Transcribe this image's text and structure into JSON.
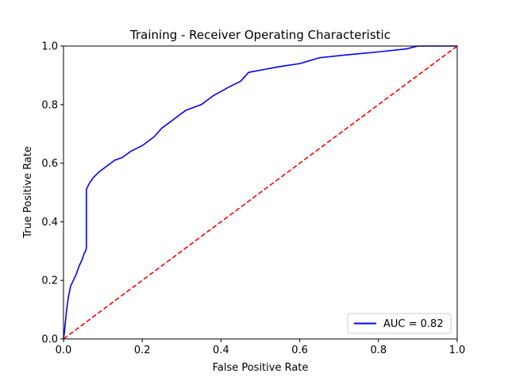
{
  "chart_data": {
    "type": "line",
    "title": "Training - Receiver Operating Characteristic",
    "xlabel": "False Positive Rate",
    "ylabel": "True Positive Rate",
    "xlim": [
      0,
      1
    ],
    "ylim": [
      0,
      1
    ],
    "xticks": [
      "0.0",
      "0.2",
      "0.4",
      "0.6",
      "0.8",
      "1.0"
    ],
    "yticks": [
      "0.0",
      "0.2",
      "0.4",
      "0.6",
      "0.8",
      "1.0"
    ],
    "grid": false,
    "legend_position": "lower-right",
    "series": [
      {
        "name": "AUC = 0.82",
        "color": "#0000ff",
        "style": "solid",
        "points": [
          [
            0.0,
            0.0
          ],
          [
            0.002,
            0.02
          ],
          [
            0.005,
            0.06
          ],
          [
            0.008,
            0.1
          ],
          [
            0.012,
            0.14
          ],
          [
            0.018,
            0.18
          ],
          [
            0.025,
            0.2
          ],
          [
            0.032,
            0.22
          ],
          [
            0.04,
            0.25
          ],
          [
            0.047,
            0.27
          ],
          [
            0.052,
            0.29
          ],
          [
            0.056,
            0.3
          ],
          [
            0.058,
            0.31
          ],
          [
            0.058,
            0.51
          ],
          [
            0.065,
            0.53
          ],
          [
            0.075,
            0.55
          ],
          [
            0.09,
            0.57
          ],
          [
            0.11,
            0.59
          ],
          [
            0.13,
            0.61
          ],
          [
            0.15,
            0.62
          ],
          [
            0.17,
            0.64
          ],
          [
            0.2,
            0.66
          ],
          [
            0.23,
            0.69
          ],
          [
            0.25,
            0.72
          ],
          [
            0.28,
            0.75
          ],
          [
            0.31,
            0.78
          ],
          [
            0.35,
            0.8
          ],
          [
            0.38,
            0.83
          ],
          [
            0.42,
            0.86
          ],
          [
            0.45,
            0.88
          ],
          [
            0.47,
            0.91
          ],
          [
            0.51,
            0.92
          ],
          [
            0.55,
            0.93
          ],
          [
            0.6,
            0.94
          ],
          [
            0.65,
            0.96
          ],
          [
            0.72,
            0.97
          ],
          [
            0.8,
            0.98
          ],
          [
            0.87,
            0.99
          ],
          [
            0.9,
            1.0
          ],
          [
            0.95,
            1.0
          ],
          [
            1.0,
            1.0
          ]
        ]
      },
      {
        "color": "#ff0000",
        "style": "dashed",
        "points": [
          [
            0,
            0
          ],
          [
            1,
            1
          ]
        ]
      }
    ]
  }
}
